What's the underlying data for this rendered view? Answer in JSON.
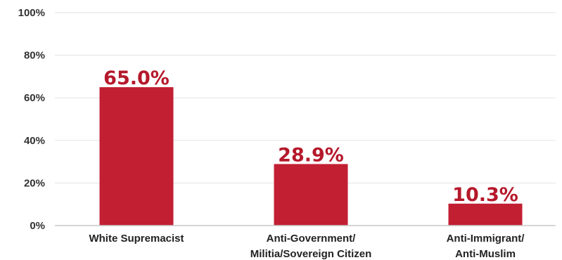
{
  "chart_data": {
    "type": "bar",
    "categories": [
      [
        "White Supremacist"
      ],
      [
        "Anti-Government/",
        "Militia/Sovereign Citizen"
      ],
      [
        "Anti-Immigrant/",
        "Anti-Muslim"
      ]
    ],
    "values": [
      65.0,
      28.9,
      10.3
    ],
    "data_labels": [
      "65.0%",
      "28.9%",
      "10.3%"
    ],
    "title": "",
    "xlabel": "",
    "ylabel": "",
    "ylim": [
      0,
      100
    ],
    "y_ticks": [
      0,
      20,
      40,
      60,
      80,
      100
    ],
    "y_tick_labels": [
      "0%",
      "20%",
      "40%",
      "60%",
      "80%",
      "100%"
    ],
    "grid": true,
    "bar_color": "#c21f33",
    "label_color": "#b5182b"
  }
}
